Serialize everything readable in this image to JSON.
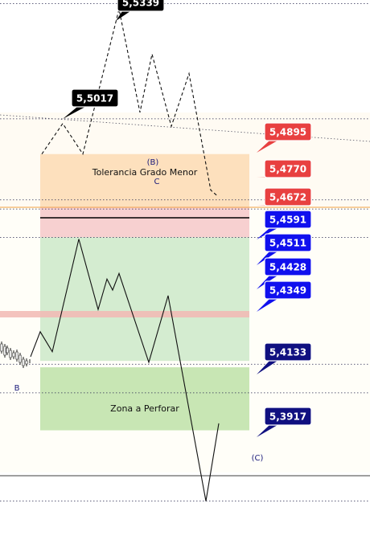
{
  "chart_data": {
    "type": "line",
    "title": "",
    "xlabel": "",
    "ylabel": "",
    "ylim": [
      5.357,
      5.547
    ],
    "grid": false,
    "colors": {
      "tolerance_zone": "#fde0bd",
      "tolerance_overlap": "#f7d0d0",
      "main_zone": "#d4ecd0",
      "drill_zone": "#c8e6b4",
      "upper_bg": "#fffbf3",
      "lower_bg": "#fffef8",
      "red_tag": "#e84040",
      "blue_tag": "#1010ee",
      "navy_tag": "#101080",
      "black_tag": "#000000",
      "pink_band": "#f2b8b4",
      "orange_line": "#f0a040"
    },
    "zones": [
      {
        "name": "tolerance",
        "label": "Tolerancia Grado Menor",
        "from": 5.47,
        "to": 5.489
      },
      {
        "name": "main",
        "label": "",
        "from": 5.4145,
        "to": 5.459
      },
      {
        "name": "drill",
        "label": "Zona a Perforar",
        "from": 5.3895,
        "to": 5.4122
      }
    ],
    "reference_levels": [
      5.5432,
      5.5017,
      5.4725,
      5.4692,
      5.459,
      5.4133,
      5.403,
      5.364
    ],
    "price_tags": [
      {
        "value": "5,5339",
        "color": "black",
        "at": 5.5339
      },
      {
        "value": "5,5017",
        "color": "black",
        "at": 5.5017
      },
      {
        "value": "5,4895",
        "color": "red",
        "at": 5.4895
      },
      {
        "value": "5,4770",
        "color": "red",
        "at": 5.477
      },
      {
        "value": "5,4672",
        "color": "red",
        "at": 5.4672
      },
      {
        "value": "5,4591",
        "color": "blue",
        "at": 5.4591
      },
      {
        "value": "5,4511",
        "color": "blue",
        "at": 5.4511
      },
      {
        "value": "5,4428",
        "color": "blue",
        "at": 5.4428
      },
      {
        "value": "5,4349",
        "color": "blue",
        "at": 5.4349
      },
      {
        "value": "5,4133",
        "color": "navy",
        "at": 5.4133
      },
      {
        "value": "5,3917",
        "color": "navy",
        "at": 5.3917
      }
    ],
    "wave_labels": [
      {
        "text": "(B)",
        "at": 5.4878
      },
      {
        "text": "C",
        "at": 5.479
      },
      {
        "text": "B",
        "at": 5.4045
      },
      {
        "text": "(C)",
        "at": 5.3685
      }
    ],
    "series": [
      {
        "name": "",
        "style": "solid",
        "values": [
          [
            0,
            5.416
          ],
          [
            1,
            5.425
          ],
          [
            2,
            5.4178
          ],
          [
            3,
            5.4584
          ],
          [
            4,
            5.433
          ],
          [
            5,
            5.444
          ],
          [
            6,
            5.44
          ],
          [
            7,
            5.446
          ],
          [
            8,
            5.414
          ],
          [
            9,
            5.438
          ],
          [
            10,
            5.364
          ],
          [
            11,
            5.392
          ]
        ]
      },
      {
        "name": "",
        "style": "dashed",
        "values": [
          [
            0,
            5.489
          ],
          [
            1,
            5.5
          ],
          [
            2,
            5.489
          ],
          [
            3,
            5.5412
          ],
          [
            4,
            5.504
          ],
          [
            5,
            5.525
          ],
          [
            6,
            5.499
          ],
          [
            7,
            5.518
          ],
          [
            8,
            5.476
          ],
          [
            9,
            5.474
          ]
        ]
      }
    ]
  }
}
